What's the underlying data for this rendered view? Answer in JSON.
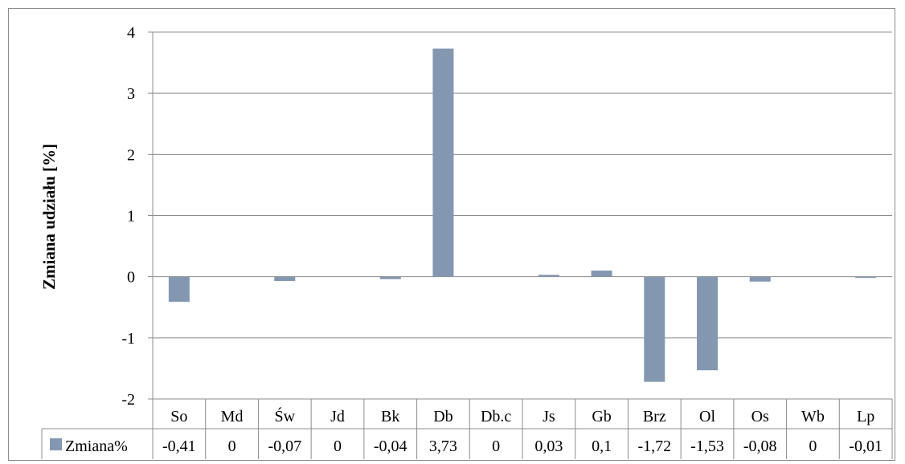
{
  "chart_data": {
    "type": "bar",
    "title": "",
    "xlabel": "",
    "ylabel": "Zmiana udziału [%]",
    "ylim": [
      -2,
      4
    ],
    "yticks": [
      4,
      3,
      2,
      1,
      0,
      -1,
      -2
    ],
    "ytick_labels": [
      "4",
      "3",
      "2",
      "1",
      "0",
      "-1",
      "-2"
    ],
    "grid": true,
    "legend": "data-table-left",
    "categories": [
      "So",
      "Md",
      "Św",
      "Jd",
      "Bk",
      "Db",
      "Db.c",
      "Js",
      "Gb",
      "Brz",
      "Ol",
      "Os",
      "Wb",
      "Lp"
    ],
    "series": [
      {
        "name": "Zmiana%",
        "color": "#8497b0",
        "values": [
          -0.41,
          0,
          -0.07,
          0,
          -0.04,
          3.73,
          0,
          0.03,
          0.1,
          -1.72,
          -1.53,
          -0.08,
          0,
          -0.01
        ],
        "value_labels": [
          "-0,41",
          "0",
          "-0,07",
          "0",
          "-0,04",
          "3,73",
          "0",
          "0,03",
          "0,1",
          "-1,72",
          "-1,53",
          "-0,08",
          "0",
          "-0,01"
        ]
      }
    ]
  }
}
